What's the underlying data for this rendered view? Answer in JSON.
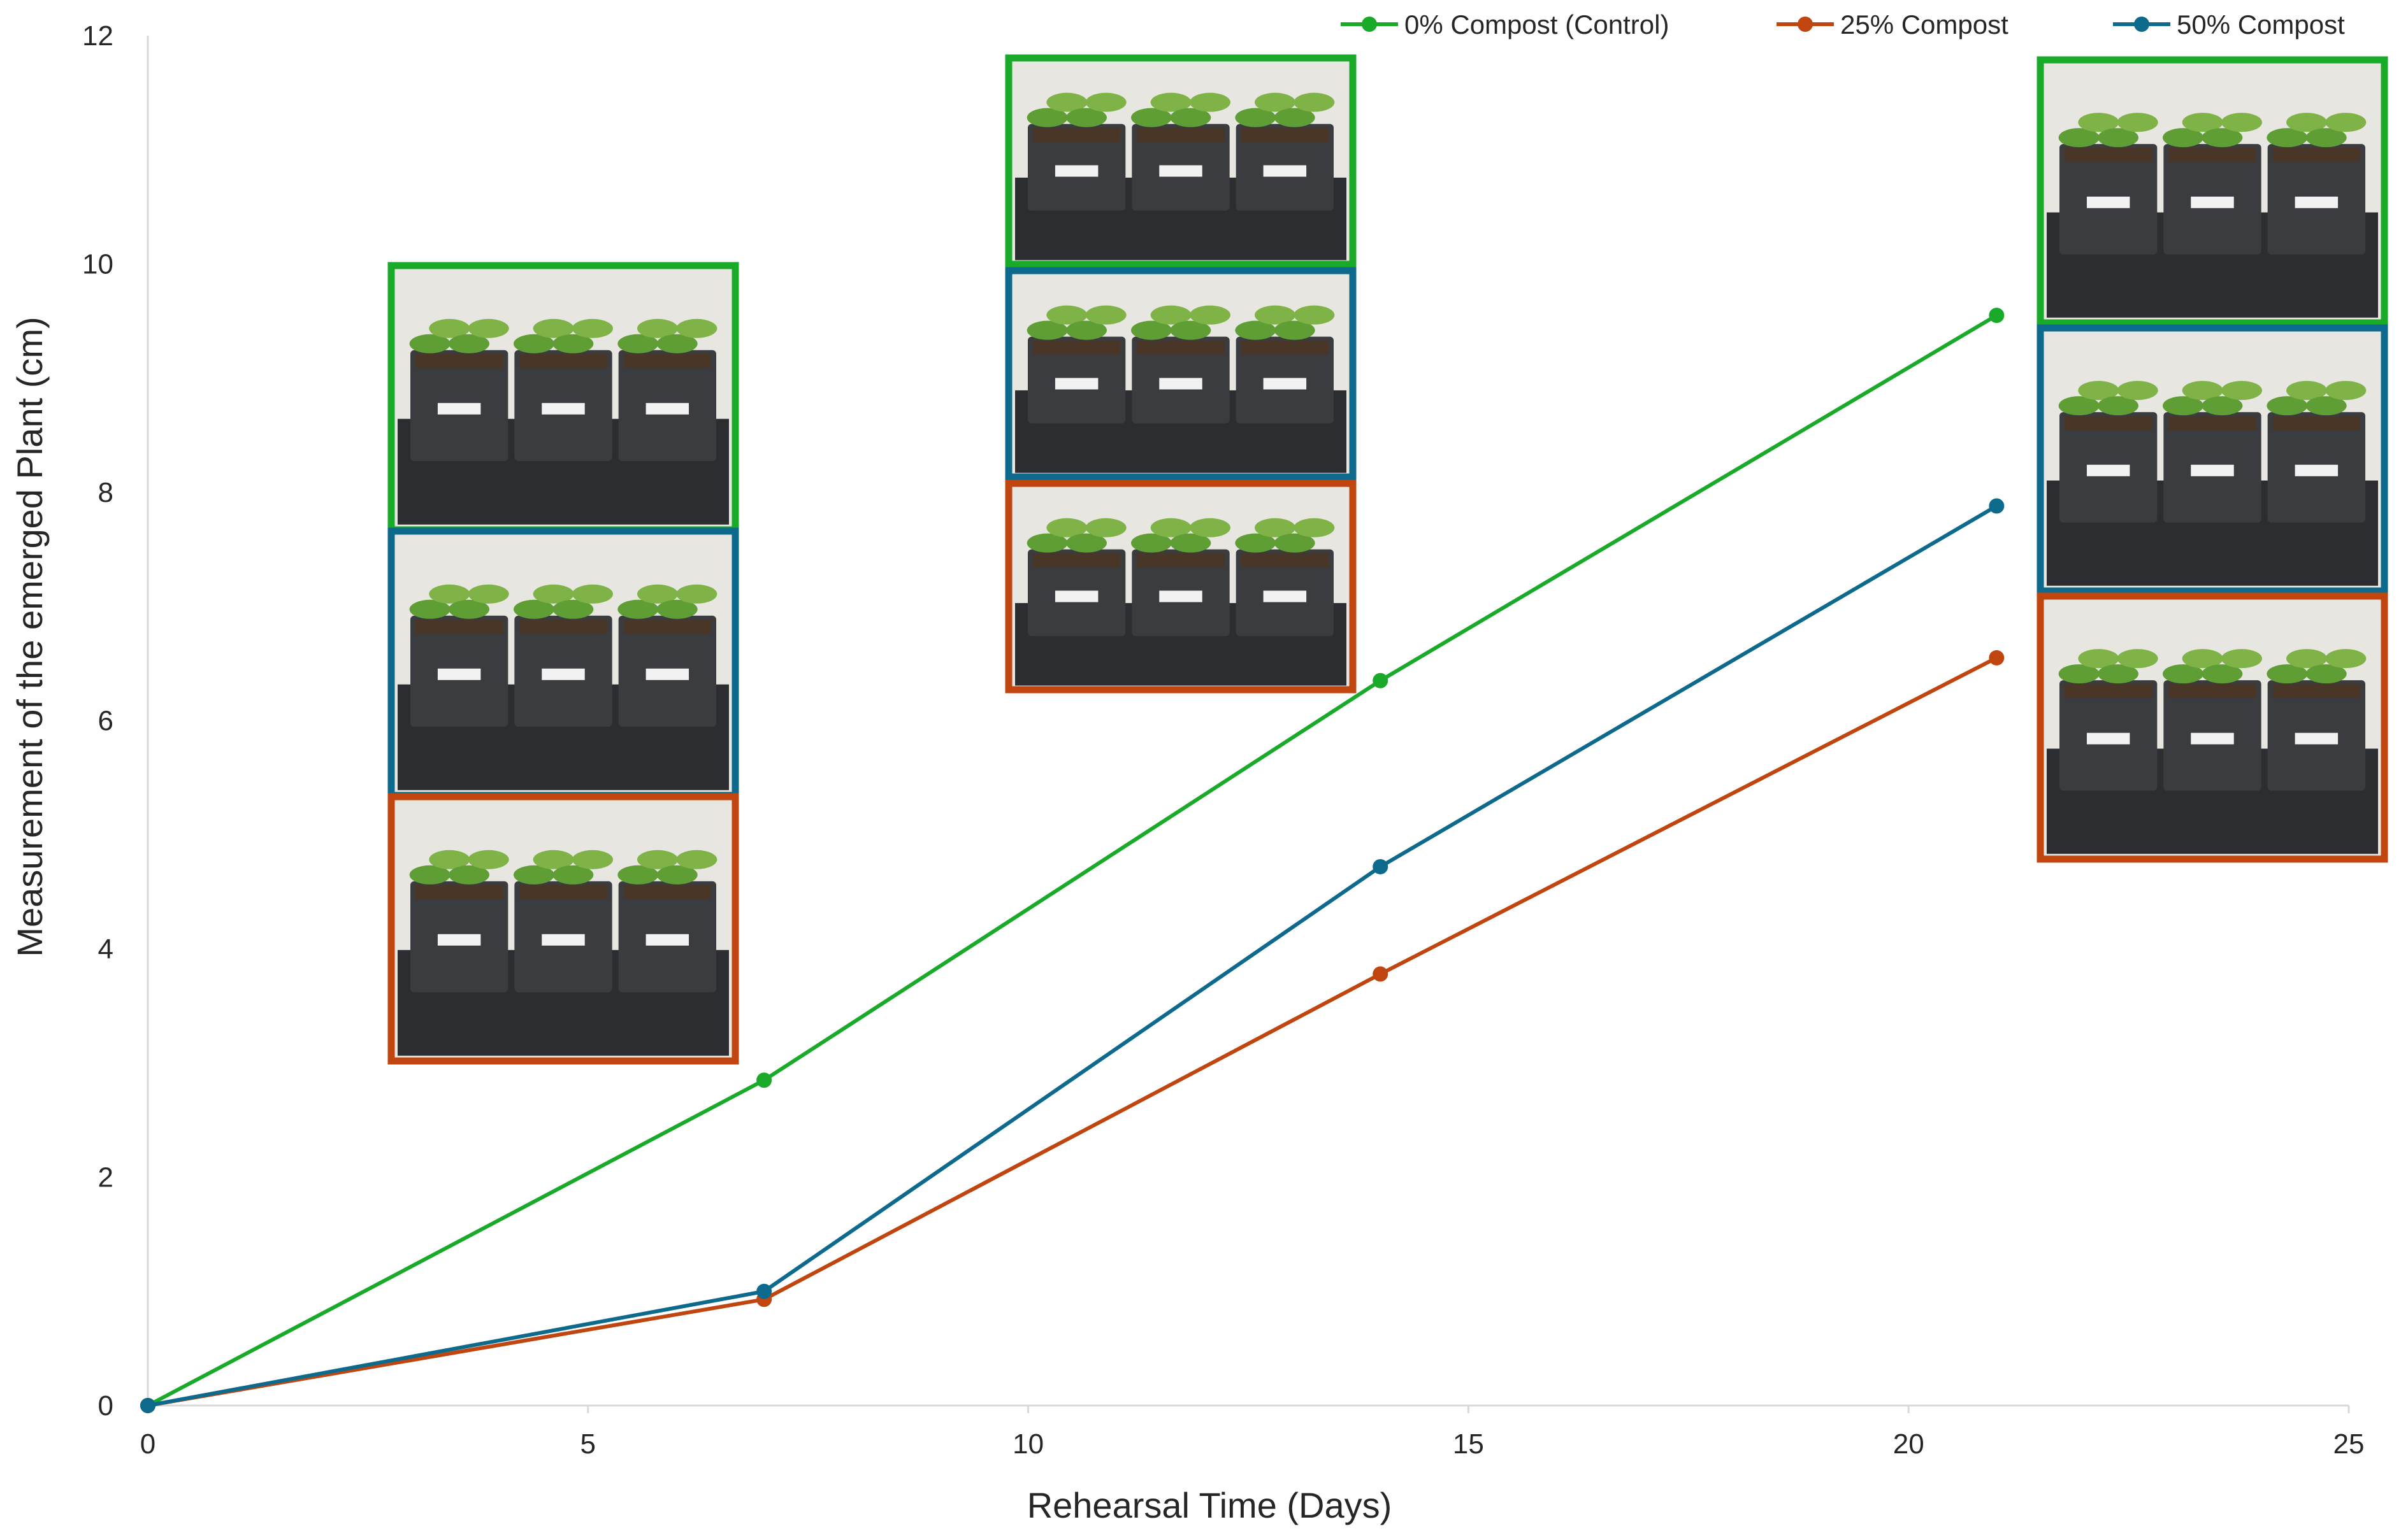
{
  "chart_data": {
    "type": "line",
    "title": "",
    "xlabel": "Rehearsal Time (Days)",
    "ylabel": "Measurement of the emerged Plant (cm)",
    "xlim": [
      0,
      25
    ],
    "ylim": [
      0,
      12
    ],
    "xticks": [
      0,
      5,
      10,
      15,
      20,
      25
    ],
    "yticks": [
      0,
      2,
      4,
      6,
      8,
      10,
      12
    ],
    "grid": false,
    "legend_position": "top",
    "x": [
      0,
      7,
      14,
      21
    ],
    "series": [
      {
        "name": "0% Compost (Control)",
        "color": "#1AAA2A",
        "values": [
          0,
          2.85,
          6.35,
          9.55
        ]
      },
      {
        "name": "25% Compost",
        "color": "#C0450F",
        "values": [
          0,
          0.93,
          3.78,
          6.55
        ]
      },
      {
        "name": "50% Compost",
        "color": "#0E6A8C",
        "values": [
          0,
          1.0,
          4.72,
          7.88
        ]
      }
    ],
    "photo_groups": [
      {
        "day": 7,
        "frames": [
          "0% Compost (Control)",
          "50% Compost",
          "25% Compost"
        ]
      },
      {
        "day": 14,
        "frames": [
          "0% Compost (Control)",
          "50% Compost",
          "25% Compost"
        ]
      },
      {
        "day": 21,
        "frames": [
          "0% Compost (Control)",
          "50% Compost",
          "25% Compost"
        ]
      }
    ]
  }
}
